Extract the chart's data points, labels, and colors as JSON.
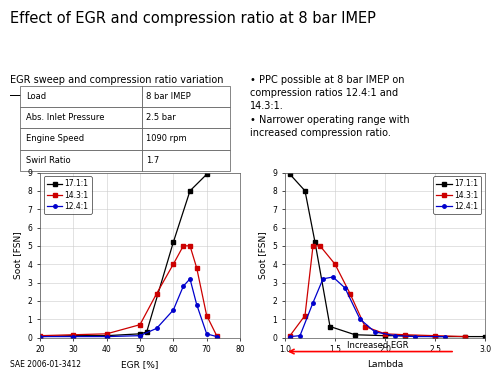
{
  "title": "Effect of EGR and compression ratio at 8 bar IMEP",
  "subtitle": "EGR sweep and compression ratio variation",
  "bg_color": "#ffffff",
  "table_data": [
    [
      "Load",
      "8 bar IMEP"
    ],
    [
      "Abs. Inlet Pressure",
      "2.5 bar"
    ],
    [
      "Engine Speed",
      "1090 rpm"
    ],
    [
      "Swirl Ratio",
      "1.7"
    ]
  ],
  "bullet_points": [
    "PPC possible at 8 bar IMEP on\ncompression ratios 12.4:1 and\n14.3:1.",
    "Narrower operating range with\nincreased compression ratio."
  ],
  "plot1": {
    "xlabel": "EGR [%]",
    "ylabel": "Soot [FSN]",
    "xlim": [
      20,
      80
    ],
    "ylim": [
      0,
      9
    ],
    "xticks": [
      20,
      30,
      40,
      50,
      60,
      70,
      80
    ],
    "yticks": [
      0,
      1,
      2,
      3,
      4,
      5,
      6,
      7,
      8,
      9
    ],
    "series": [
      {
        "label": "17.1:1",
        "color": "#000000",
        "marker": "s",
        "x": [
          20,
          30,
          40,
          50,
          52,
          60,
          65,
          70
        ],
        "y": [
          0.05,
          0.1,
          0.1,
          0.2,
          0.3,
          5.2,
          8.0,
          8.9
        ]
      },
      {
        "label": "14.3:1",
        "color": "#cc0000",
        "marker": "s",
        "x": [
          20,
          30,
          40,
          50,
          55,
          60,
          63,
          65,
          67,
          70,
          73
        ],
        "y": [
          0.1,
          0.15,
          0.2,
          0.7,
          2.4,
          4.0,
          5.0,
          5.0,
          3.8,
          1.2,
          0.1
        ]
      },
      {
        "label": "12.4:1",
        "color": "#0000cc",
        "marker": "o",
        "x": [
          20,
          30,
          40,
          50,
          55,
          60,
          63,
          65,
          67,
          70,
          73
        ],
        "y": [
          0.05,
          0.05,
          0.05,
          0.1,
          0.5,
          1.5,
          2.8,
          3.2,
          1.8,
          0.2,
          0.05
        ]
      }
    ]
  },
  "plot2": {
    "xlabel": "Lambda",
    "ylabel": "Soot [FSN]",
    "xlim": [
      1,
      3
    ],
    "ylim": [
      0,
      9
    ],
    "xticks": [
      1,
      1.5,
      2,
      2.5,
      3
    ],
    "yticks": [
      0,
      1,
      2,
      3,
      4,
      5,
      6,
      7,
      8,
      9
    ],
    "arrow_label": "Increased EGR",
    "series": [
      {
        "label": "17.1:1",
        "color": "#000000",
        "marker": "s",
        "x": [
          1.05,
          1.2,
          1.3,
          1.45,
          1.7,
          2.0,
          2.2,
          2.5,
          2.8,
          3.0
        ],
        "y": [
          8.9,
          8.0,
          5.2,
          0.6,
          0.15,
          0.1,
          0.1,
          0.05,
          0.05,
          0.05
        ]
      },
      {
        "label": "14.3:1",
        "color": "#cc0000",
        "marker": "s",
        "x": [
          1.05,
          1.2,
          1.28,
          1.35,
          1.5,
          1.65,
          1.8,
          2.0,
          2.2,
          2.5,
          2.8
        ],
        "y": [
          0.1,
          1.2,
          5.0,
          5.0,
          4.0,
          2.4,
          0.6,
          0.2,
          0.15,
          0.1,
          0.05
        ]
      },
      {
        "label": "12.4:1",
        "color": "#0000cc",
        "marker": "o",
        "x": [
          1.05,
          1.15,
          1.28,
          1.38,
          1.48,
          1.6,
          1.75,
          1.9,
          2.1,
          2.3,
          2.6
        ],
        "y": [
          0.05,
          0.1,
          1.9,
          3.2,
          3.3,
          2.7,
          1.0,
          0.3,
          0.1,
          0.05,
          0.05
        ]
      }
    ]
  },
  "sae_label": "SAE 2006-01-3412"
}
